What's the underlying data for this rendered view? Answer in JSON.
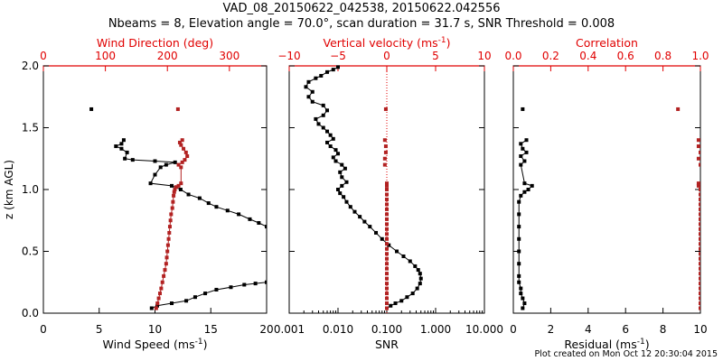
{
  "header": {
    "title": "VAD_08_20150622_042538, 20150622.042556",
    "subtitle": "Nbeams = 8, Elevation angle = 70.0°, scan duration = 31.7 s, SNR Threshold = 0.008"
  },
  "footer": {
    "text": "Plot created on Mon Oct 12 20:30:04 2015"
  },
  "colors": {
    "primary": "#000000",
    "secondary": "#b22222",
    "axis_red": "#e00000"
  },
  "chart_data": [
    {
      "type": "scatter",
      "title": "",
      "ylabel": "z (km AGL)",
      "ylim": [
        0,
        2.0
      ],
      "yticks": [
        "0.0",
        "0.5",
        "1.0",
        "1.5",
        "2.0"
      ],
      "bottom_axis": {
        "label": "Wind Speed (ms",
        "label_sup": "-1",
        "label_tail": ")",
        "xlim": [
          0,
          20
        ],
        "ticks": [
          0,
          5,
          10,
          15,
          20
        ],
        "tick_labels": [
          "0",
          "5",
          "10",
          "15",
          "20"
        ]
      },
      "top_axis": {
        "label": "Wind Direction (deg)",
        "xlim": [
          0,
          360
        ],
        "ticks": [
          0,
          100,
          200,
          300
        ],
        "tick_labels": [
          "0",
          "100",
          "200",
          "300"
        ]
      },
      "series": [
        {
          "axis": "bottom",
          "color": "#000000",
          "connected": true,
          "points": [
            [
              9.7,
              0.04
            ],
            [
              10.2,
              0.06
            ],
            [
              11.5,
              0.08
            ],
            [
              12.8,
              0.1
            ],
            [
              13.6,
              0.13
            ],
            [
              14.5,
              0.16
            ],
            [
              15.5,
              0.19
            ],
            [
              16.8,
              0.21
            ],
            [
              18.0,
              0.23
            ],
            [
              19.0,
              0.24
            ],
            [
              20,
              0.25
            ],
            [
              20,
              0.7
            ],
            [
              19.3,
              0.73
            ],
            [
              18.5,
              0.76
            ],
            [
              17.5,
              0.8
            ],
            [
              16.5,
              0.83
            ],
            [
              15.5,
              0.86
            ],
            [
              14.8,
              0.89
            ],
            [
              14.0,
              0.93
            ],
            [
              13.0,
              0.96
            ],
            [
              12.3,
              1.0
            ],
            [
              11.5,
              1.03
            ],
            [
              9.6,
              1.05
            ],
            [
              10.0,
              1.12
            ],
            [
              10.5,
              1.18
            ],
            [
              11.0,
              1.2
            ],
            [
              11.8,
              1.22
            ],
            [
              10.0,
              1.23
            ],
            [
              8.0,
              1.24
            ],
            [
              7.3,
              1.25
            ],
            [
              7.5,
              1.3
            ],
            [
              7.0,
              1.33
            ],
            [
              6.5,
              1.35
            ],
            [
              7.0,
              1.37
            ],
            [
              7.2,
              1.4
            ]
          ]
        },
        {
          "axis": "bottom",
          "color": "#000000",
          "connected": false,
          "points": [
            [
              4.3,
              1.65
            ]
          ]
        },
        {
          "axis": "top",
          "color": "#b22222",
          "connected": true,
          "points": [
            [
              182,
              0.04
            ],
            [
              184,
              0.08
            ],
            [
              186,
              0.12
            ],
            [
              188,
              0.16
            ],
            [
              190,
              0.2
            ],
            [
              192,
              0.25
            ],
            [
              194,
              0.3
            ],
            [
              196,
              0.35
            ],
            [
              198,
              0.4
            ],
            [
              199,
              0.45
            ],
            [
              200,
              0.5
            ],
            [
              201,
              0.55
            ],
            [
              202,
              0.6
            ],
            [
              203,
              0.65
            ],
            [
              204,
              0.7
            ],
            [
              205,
              0.75
            ],
            [
              206,
              0.8
            ],
            [
              208,
              0.85
            ],
            [
              209,
              0.9
            ],
            [
              210,
              0.95
            ],
            [
              211,
              0.98
            ],
            [
              212,
              1.0
            ],
            [
              214,
              1.02
            ],
            [
              218,
              1.03
            ],
            [
              222,
              1.05
            ],
            [
              222,
              1.18
            ],
            [
              218,
              1.2
            ],
            [
              224,
              1.22
            ],
            [
              228,
              1.24
            ],
            [
              232,
              1.27
            ],
            [
              230,
              1.3
            ],
            [
              226,
              1.33
            ],
            [
              222,
              1.36
            ],
            [
              220,
              1.38
            ],
            [
              224,
              1.4
            ]
          ]
        },
        {
          "axis": "top",
          "color": "#b22222",
          "connected": false,
          "points": [
            [
              217,
              1.65
            ]
          ]
        }
      ]
    },
    {
      "type": "scatter",
      "title": "",
      "ylim": [
        0,
        2.0
      ],
      "bottom_axis": {
        "label": "SNR",
        "xlim": [
          0.001,
          10
        ],
        "log": true,
        "ticks": [
          0.001,
          0.01,
          0.1,
          1,
          10
        ],
        "tick_labels": [
          "0.001",
          "0.010",
          "0.100",
          "1.000",
          "10.000"
        ]
      },
      "top_axis": {
        "label": "Vertical velocity (ms",
        "label_sup": "-1",
        "label_tail": ")",
        "xlim": [
          -10,
          10
        ],
        "ticks": [
          -10,
          -5,
          0,
          5,
          10
        ],
        "tick_labels": [
          "−10",
          "−5",
          "0",
          "5",
          "10"
        ]
      },
      "reference_line": {
        "axis": "top",
        "value": 0,
        "style": "dotted",
        "color": "#e00000"
      },
      "series": [
        {
          "axis": "bottom",
          "color": "#000000",
          "connected": true,
          "points": [
            [
              0.1,
              0.04
            ],
            [
              0.12,
              0.06
            ],
            [
              0.15,
              0.08
            ],
            [
              0.2,
              0.1
            ],
            [
              0.26,
              0.13
            ],
            [
              0.34,
              0.16
            ],
            [
              0.42,
              0.2
            ],
            [
              0.48,
              0.24
            ],
            [
              0.5,
              0.28
            ],
            [
              0.48,
              0.32
            ],
            [
              0.44,
              0.35
            ],
            [
              0.38,
              0.38
            ],
            [
              0.3,
              0.42
            ],
            [
              0.22,
              0.46
            ],
            [
              0.16,
              0.5
            ],
            [
              0.11,
              0.55
            ],
            [
              0.08,
              0.6
            ],
            [
              0.06,
              0.65
            ],
            [
              0.045,
              0.7
            ],
            [
              0.035,
              0.74
            ],
            [
              0.028,
              0.78
            ],
            [
              0.022,
              0.82
            ],
            [
              0.018,
              0.86
            ],
            [
              0.015,
              0.9
            ],
            [
              0.013,
              0.94
            ],
            [
              0.011,
              0.97
            ],
            [
              0.01,
              1.0
            ],
            [
              0.012,
              1.03
            ],
            [
              0.015,
              1.06
            ],
            [
              0.012,
              1.1
            ],
            [
              0.011,
              1.14
            ],
            [
              0.014,
              1.17
            ],
            [
              0.012,
              1.2
            ],
            [
              0.009,
              1.23
            ],
            [
              0.008,
              1.26
            ],
            [
              0.01,
              1.29
            ],
            [
              0.009,
              1.32
            ],
            [
              0.007,
              1.35
            ],
            [
              0.006,
              1.38
            ],
            [
              0.008,
              1.41
            ],
            [
              0.007,
              1.44
            ],
            [
              0.006,
              1.47
            ],
            [
              0.005,
              1.5
            ],
            [
              0.004,
              1.53
            ],
            [
              0.0035,
              1.57
            ],
            [
              0.005,
              1.6
            ],
            [
              0.006,
              1.64
            ],
            [
              0.005,
              1.68
            ],
            [
              0.003,
              1.71
            ],
            [
              0.0025,
              1.75
            ],
            [
              0.003,
              1.79
            ],
            [
              0.0022,
              1.83
            ],
            [
              0.0025,
              1.87
            ],
            [
              0.0035,
              1.9
            ],
            [
              0.0045,
              1.92
            ],
            [
              0.006,
              1.95
            ],
            [
              0.008,
              1.97
            ],
            [
              0.01,
              1.99
            ]
          ]
        },
        {
          "axis": "top",
          "color": "#b22222",
          "connected": false,
          "points": [
            [
              0,
              0.04
            ],
            [
              0,
              0.08
            ],
            [
              0,
              0.12
            ],
            [
              0,
              0.16
            ],
            [
              0,
              0.2
            ],
            [
              0,
              0.24
            ],
            [
              0,
              0.28
            ],
            [
              0,
              0.32
            ],
            [
              0,
              0.36
            ],
            [
              0,
              0.4
            ],
            [
              0,
              0.44
            ],
            [
              0,
              0.48
            ],
            [
              0,
              0.52
            ],
            [
              0,
              0.56
            ],
            [
              0,
              0.6
            ],
            [
              0,
              0.64
            ],
            [
              0,
              0.68
            ],
            [
              0,
              0.72
            ],
            [
              0,
              0.76
            ],
            [
              0,
              0.8
            ],
            [
              0,
              0.84
            ],
            [
              0,
              0.88
            ],
            [
              0,
              0.92
            ],
            [
              0,
              0.96
            ],
            [
              0,
              1.0
            ],
            [
              0,
              1.03
            ],
            [
              0,
              1.05
            ],
            [
              -0.2,
              1.2
            ],
            [
              -0.2,
              1.25
            ],
            [
              -0.1,
              1.3
            ],
            [
              -0.1,
              1.35
            ],
            [
              -0.2,
              1.4
            ],
            [
              -0.1,
              1.65
            ]
          ]
        }
      ]
    },
    {
      "type": "scatter",
      "title": "",
      "ylim": [
        0,
        2.0
      ],
      "bottom_axis": {
        "label": "Residual (ms",
        "label_sup": "-1",
        "label_tail": ")",
        "xlim": [
          0,
          10
        ],
        "ticks": [
          0,
          2,
          4,
          6,
          8,
          10
        ],
        "tick_labels": [
          "0",
          "2",
          "4",
          "6",
          "8",
          "10"
        ]
      },
      "top_axis": {
        "label": "Correlation",
        "xlim": [
          0,
          1
        ],
        "ticks": [
          0,
          0.2,
          0.4,
          0.6,
          0.8,
          1.0
        ],
        "tick_labels": [
          "0.0",
          "0.2",
          "0.4",
          "0.6",
          "0.8",
          "1.0"
        ]
      },
      "series": [
        {
          "axis": "bottom",
          "color": "#000000",
          "connected": true,
          "points": [
            [
              0.5,
              0.04
            ],
            [
              0.6,
              0.08
            ],
            [
              0.5,
              0.12
            ],
            [
              0.4,
              0.16
            ],
            [
              0.4,
              0.2
            ],
            [
              0.3,
              0.25
            ],
            [
              0.3,
              0.3
            ],
            [
              0.3,
              0.4
            ],
            [
              0.3,
              0.5
            ],
            [
              0.3,
              0.6
            ],
            [
              0.3,
              0.7
            ],
            [
              0.3,
              0.8
            ],
            [
              0.3,
              0.9
            ],
            [
              0.4,
              0.95
            ],
            [
              0.6,
              0.98
            ],
            [
              0.8,
              1.0
            ],
            [
              1.0,
              1.03
            ],
            [
              0.6,
              1.05
            ],
            [
              0.4,
              1.2
            ],
            [
              0.6,
              1.23
            ],
            [
              0.4,
              1.27
            ],
            [
              0.7,
              1.3
            ],
            [
              0.5,
              1.33
            ],
            [
              0.4,
              1.37
            ],
            [
              0.7,
              1.4
            ]
          ]
        },
        {
          "axis": "bottom",
          "color": "#000000",
          "connected": false,
          "points": [
            [
              0.5,
              1.65
            ]
          ]
        },
        {
          "axis": "top",
          "color": "#b22222",
          "connected": false,
          "points": [
            [
              1,
              0.04
            ],
            [
              1,
              0.08
            ],
            [
              1,
              0.12
            ],
            [
              1,
              0.16
            ],
            [
              1,
              0.2
            ],
            [
              1,
              0.24
            ],
            [
              1,
              0.28
            ],
            [
              1,
              0.32
            ],
            [
              1,
              0.36
            ],
            [
              1,
              0.4
            ],
            [
              1,
              0.44
            ],
            [
              1,
              0.48
            ],
            [
              1,
              0.52
            ],
            [
              1,
              0.56
            ],
            [
              1,
              0.6
            ],
            [
              1,
              0.64
            ],
            [
              1,
              0.68
            ],
            [
              1,
              0.72
            ],
            [
              1,
              0.76
            ],
            [
              1,
              0.8
            ],
            [
              1,
              0.84
            ],
            [
              1,
              0.88
            ],
            [
              1,
              0.92
            ],
            [
              1,
              0.96
            ],
            [
              1,
              1.0
            ],
            [
              0.99,
              1.03
            ],
            [
              0.99,
              1.05
            ],
            [
              1,
              1.2
            ],
            [
              0.99,
              1.25
            ],
            [
              1,
              1.3
            ],
            [
              0.99,
              1.35
            ],
            [
              0.99,
              1.4
            ],
            [
              0.88,
              1.65
            ]
          ]
        }
      ]
    }
  ]
}
